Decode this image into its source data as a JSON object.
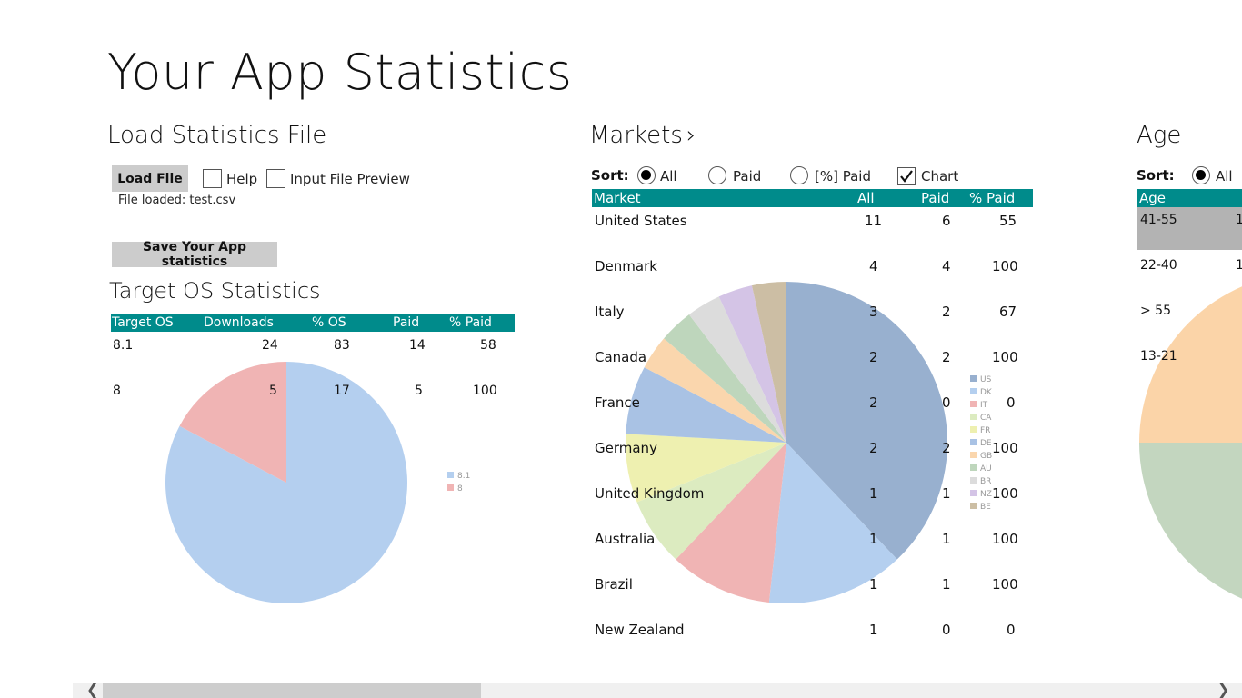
{
  "app_title": "Your App Statistics",
  "load_section": {
    "title": "Load Statistics File",
    "load_button": "Load File",
    "help_label": "Help",
    "help_checked": false,
    "preview_label": "Input File Preview",
    "preview_checked": false,
    "file_loaded": "File loaded: test.csv",
    "save_button": "Save Your App statistics"
  },
  "os_section": {
    "title": "Target OS Statistics",
    "headers": [
      "Target OS",
      "Downloads",
      "% OS",
      "Paid",
      "% Paid"
    ],
    "rows": [
      {
        "os": "8.1",
        "downloads": "24",
        "pct_os": "83",
        "paid": "14",
        "pct_paid": "58"
      },
      {
        "os": "8",
        "downloads": "5",
        "pct_os": "17",
        "paid": "5",
        "pct_paid": "100"
      }
    ]
  },
  "markets_section": {
    "title": "Markets",
    "chevron": "›",
    "sort_label": "Sort:",
    "sort_options": [
      {
        "label": "All",
        "selected": true
      },
      {
        "label": "Paid",
        "selected": false
      },
      {
        "label": "[%] Paid",
        "selected": false
      }
    ],
    "chart_label": "Chart",
    "chart_checked": true,
    "headers": [
      "Market",
      "All",
      "Paid",
      "% Paid"
    ],
    "rows": [
      {
        "market": "United States",
        "all": "11",
        "paid": "6",
        "pct_paid": "55"
      },
      {
        "market": "Denmark",
        "all": "4",
        "paid": "4",
        "pct_paid": "100"
      },
      {
        "market": "Italy",
        "all": "3",
        "paid": "2",
        "pct_paid": "67"
      },
      {
        "market": "Canada",
        "all": "2",
        "paid": "2",
        "pct_paid": "100"
      },
      {
        "market": "France",
        "all": "2",
        "paid": "0",
        "pct_paid": "0"
      },
      {
        "market": "Germany",
        "all": "2",
        "paid": "2",
        "pct_paid": "100"
      },
      {
        "market": "United Kingdom",
        "all": "1",
        "paid": "1",
        "pct_paid": "100"
      },
      {
        "market": "Australia",
        "all": "1",
        "paid": "1",
        "pct_paid": "100"
      },
      {
        "market": "Brazil",
        "all": "1",
        "paid": "1",
        "pct_paid": "100"
      },
      {
        "market": "New Zealand",
        "all": "1",
        "paid": "0",
        "pct_paid": "0"
      }
    ]
  },
  "age_section": {
    "title": "Age",
    "sort_label": "Sort:",
    "sort_first_option": "All",
    "header": "Age",
    "rows": [
      {
        "age": "41-55",
        "all": "1",
        "selected": true
      },
      {
        "age": "22-40",
        "all": "1",
        "selected": false
      },
      {
        "age": "> 55",
        "all": "",
        "selected": false
      },
      {
        "age": "13-21",
        "all": "",
        "selected": false
      }
    ]
  },
  "chart_data": [
    {
      "type": "pie",
      "labels": [
        "8.1",
        "8"
      ],
      "values": [
        24,
        5
      ],
      "colors": [
        "#b4cfef",
        "#f0b4b4"
      ],
      "legend_position": "right"
    },
    {
      "type": "pie",
      "labels": [
        "US",
        "DK",
        "IT",
        "CA",
        "FR",
        "DE",
        "GB",
        "AU",
        "BR",
        "NZ",
        "BE"
      ],
      "values": [
        11,
        4,
        3,
        2,
        2,
        2,
        1,
        1,
        1,
        1,
        1
      ],
      "colors": [
        "#98b0cf",
        "#b4cfef",
        "#f0b4b4",
        "#dcebc0",
        "#eef0b0",
        "#a9c2e4",
        "#fad6ad",
        "#bed6bc",
        "#dcdcdc",
        "#d4c4e6",
        "#ccbea4"
      ],
      "legend_position": "right"
    },
    {
      "type": "pie",
      "labels": [
        "41-55",
        "22-40",
        "> 55",
        "13-21"
      ],
      "values": [
        1,
        1,
        1,
        1
      ],
      "colors": [
        "#c3d6bf",
        "#fbd4a8",
        "#b4cfef",
        "#f0b4b4"
      ],
      "legend_position": "none"
    }
  ]
}
